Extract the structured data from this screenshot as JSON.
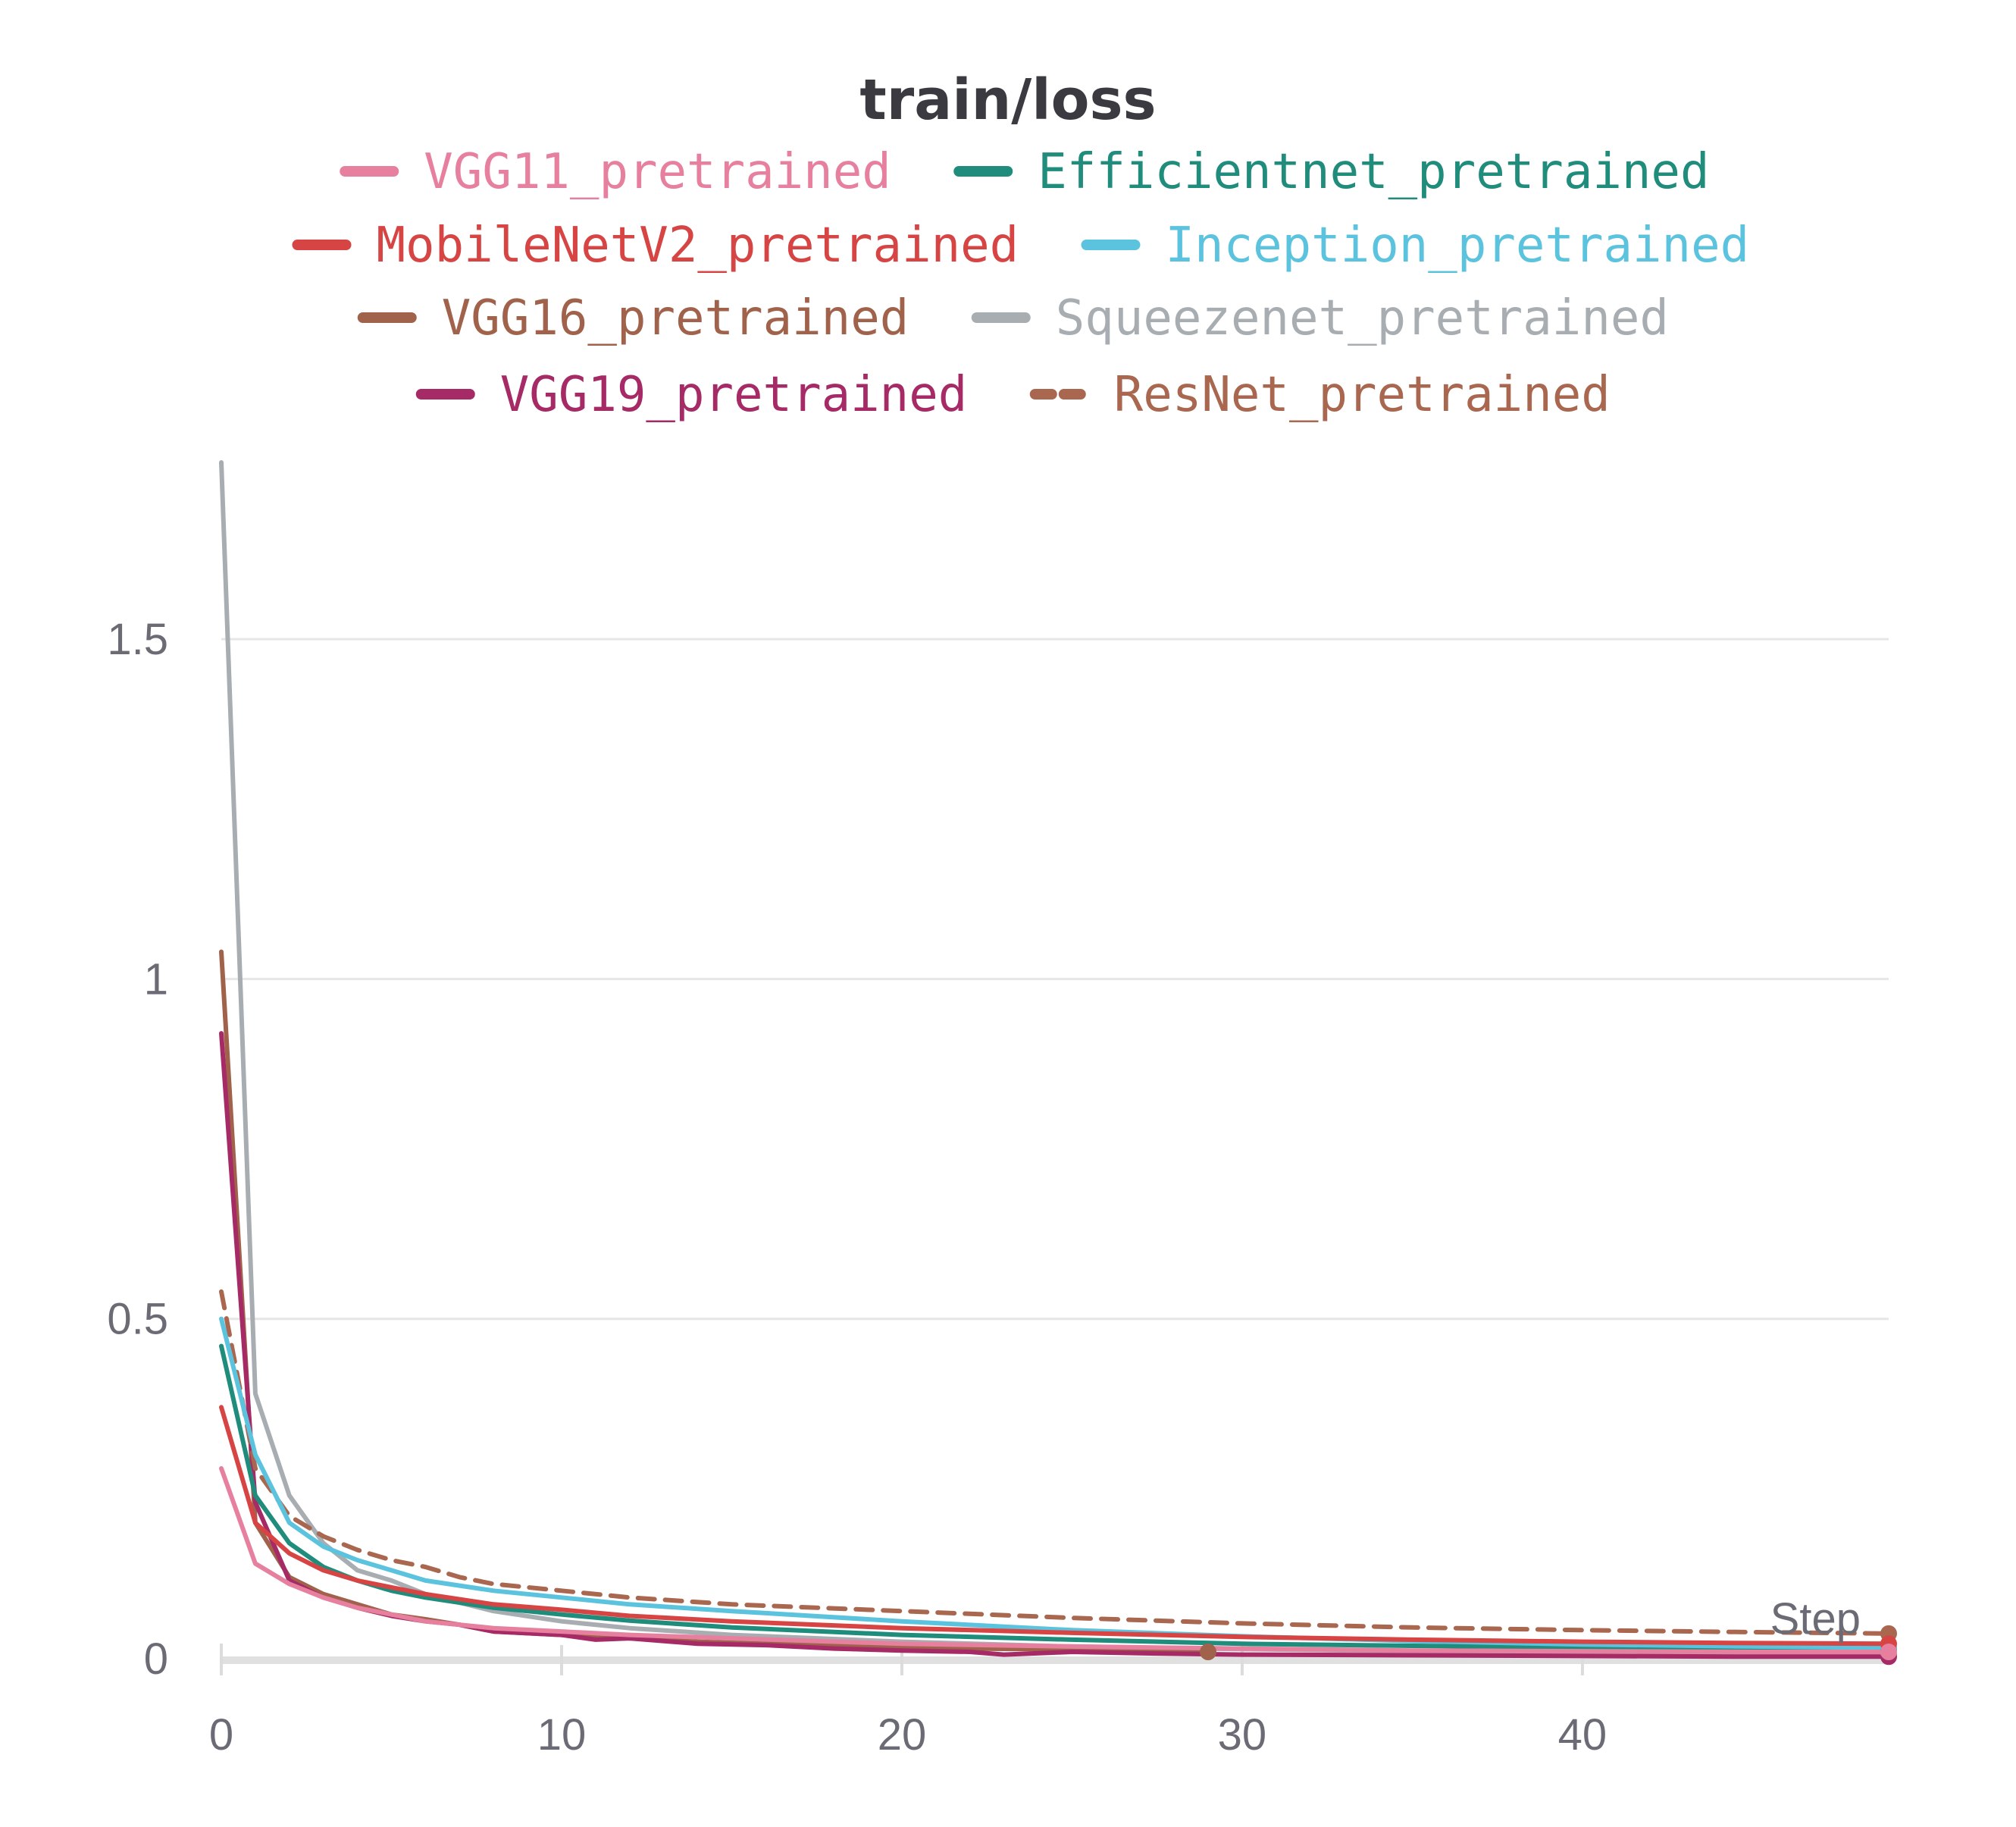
{
  "chart_data": {
    "type": "line",
    "title": "train/loss",
    "xlabel": "Step",
    "ylabel": "",
    "xlim": [
      0,
      49
    ],
    "ylim": [
      0,
      1.76
    ],
    "x_ticks": [
      0,
      10,
      20,
      30,
      40
    ],
    "x_tick_labels": [
      "0",
      "10",
      "20",
      "30",
      "40"
    ],
    "y_ticks": [
      0,
      0.5,
      1,
      1.5
    ],
    "y_tick_labels": [
      "0",
      "0.5",
      "1",
      "1.5"
    ],
    "grid": true,
    "legend_position": "top",
    "series": [
      {
        "name": "VGG11_pretrained",
        "color": "#e7809f",
        "dash": "solid",
        "x": [
          0,
          1,
          2,
          3,
          4,
          5,
          6,
          7,
          8,
          10,
          12,
          15,
          20,
          25,
          30,
          35,
          40,
          45,
          49
        ],
        "values": [
          0.28,
          0.14,
          0.11,
          0.09,
          0.075,
          0.065,
          0.055,
          0.05,
          0.045,
          0.04,
          0.035,
          0.03,
          0.022,
          0.018,
          0.015,
          0.012,
          0.011,
          0.01,
          0.01
        ]
      },
      {
        "name": "Efficientnet_pretrained",
        "color": "#1f8c7c",
        "dash": "solid",
        "x": [
          0,
          1,
          2,
          3,
          4,
          5,
          6,
          8,
          10,
          12,
          15,
          20,
          25,
          30,
          35,
          40,
          45,
          49
        ],
        "values": [
          0.46,
          0.24,
          0.17,
          0.135,
          0.115,
          0.1,
          0.09,
          0.075,
          0.065,
          0.056,
          0.046,
          0.035,
          0.028,
          0.022,
          0.019,
          0.017,
          0.015,
          0.014
        ]
      },
      {
        "name": "MobileNetV2_pretrained",
        "color": "#d64444",
        "dash": "solid",
        "x": [
          0,
          1,
          2,
          3,
          4,
          5,
          6,
          8,
          10,
          12,
          15,
          20,
          25,
          30,
          35,
          40,
          45,
          49
        ],
        "values": [
          0.37,
          0.2,
          0.155,
          0.13,
          0.115,
          0.105,
          0.095,
          0.08,
          0.072,
          0.063,
          0.055,
          0.045,
          0.038,
          0.032,
          0.028,
          0.025,
          0.023,
          0.022
        ]
      },
      {
        "name": "Inception_pretrained",
        "color": "#5bc3dd",
        "dash": "solid",
        "x": [
          0,
          1,
          2,
          3,
          4,
          5,
          6,
          8,
          10,
          12,
          15,
          20,
          25,
          30,
          35,
          40,
          45,
          49
        ],
        "values": [
          0.5,
          0.3,
          0.2,
          0.165,
          0.145,
          0.13,
          0.115,
          0.1,
          0.09,
          0.08,
          0.07,
          0.055,
          0.042,
          0.033,
          0.026,
          0.021,
          0.018,
          0.016
        ]
      },
      {
        "name": "VGG16_pretrained",
        "color": "#a0624a",
        "dash": "solid",
        "x": [
          0,
          1,
          2,
          3,
          4,
          5,
          6,
          7,
          8,
          10,
          12,
          14,
          16,
          18,
          20,
          22,
          24,
          26,
          29
        ],
        "values": [
          1.04,
          0.2,
          0.12,
          0.095,
          0.08,
          0.065,
          0.058,
          0.05,
          0.04,
          0.035,
          0.03,
          0.025,
          0.022,
          0.02,
          0.018,
          0.015,
          0.014,
          0.012,
          0.01
        ]
      },
      {
        "name": "Squeezenet_pretrained",
        "color": "#a8adb2",
        "dash": "solid",
        "x": [
          0,
          1,
          2,
          3,
          4,
          5,
          6,
          8,
          10,
          12,
          15,
          20,
          25,
          30,
          35,
          40,
          45,
          49
        ],
        "values": [
          1.76,
          0.39,
          0.24,
          0.17,
          0.13,
          0.115,
          0.095,
          0.07,
          0.055,
          0.045,
          0.035,
          0.025,
          0.018,
          0.014,
          0.011,
          0.009,
          0.008,
          0.007
        ]
      },
      {
        "name": "VGG19_pretrained",
        "color": "#a62a66",
        "dash": "solid",
        "x": [
          0,
          1,
          2,
          3,
          4,
          5,
          6,
          7,
          8,
          10,
          11,
          12,
          14,
          16,
          18,
          20,
          22,
          23,
          25,
          27,
          30,
          35,
          40,
          45,
          49
        ],
        "values": [
          0.92,
          0.23,
          0.115,
          0.09,
          0.075,
          0.063,
          0.055,
          0.05,
          0.04,
          0.035,
          0.028,
          0.03,
          0.022,
          0.02,
          0.015,
          0.012,
          0.01,
          0.006,
          0.01,
          0.008,
          0.006,
          0.005,
          0.004,
          0.003,
          0.003
        ]
      },
      {
        "name": "ResNet_pretrained",
        "color": "#a9674f",
        "dash": "dashed",
        "x": [
          0,
          1,
          2,
          3,
          4,
          5,
          6,
          7,
          8,
          10,
          12,
          15,
          20,
          25,
          30,
          35,
          40,
          45,
          49
        ],
        "values": [
          0.54,
          0.28,
          0.21,
          0.18,
          0.16,
          0.145,
          0.135,
          0.12,
          0.11,
          0.1,
          0.09,
          0.08,
          0.07,
          0.06,
          0.052,
          0.046,
          0.042,
          0.039,
          0.037
        ]
      }
    ]
  }
}
